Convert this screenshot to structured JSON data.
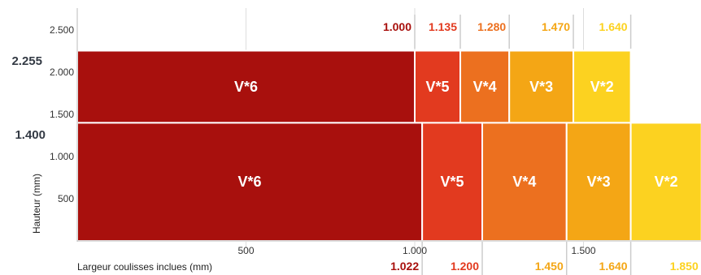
{
  "chart_data": {
    "type": "bar",
    "xlabel": "Largeur coulisses inclues (mm)",
    "ylabel": "Hauteur (mm)",
    "xlim": [
      0,
      1850
    ],
    "ylim": [
      0,
      2700
    ],
    "x_ticks": [
      {
        "value": 500,
        "label": "500"
      },
      {
        "value": 1000,
        "label": "1.000"
      },
      {
        "value": 1500,
        "label": "1.500"
      }
    ],
    "y_ticks": [
      {
        "value": 500,
        "label": "500"
      },
      {
        "value": 1000,
        "label": "1.000"
      },
      {
        "value": 1500,
        "label": "1.500"
      },
      {
        "value": 2000,
        "label": "2.000"
      },
      {
        "value": 2500,
        "label": "2.500"
      }
    ],
    "y_bounds": [
      {
        "value": 2255,
        "label": "2.255"
      },
      {
        "value": 1400,
        "label": "1.400"
      }
    ],
    "colors": {
      "V*6": "#a8100d",
      "V*5": "#e23a1f",
      "V*4": "#ec701f",
      "V*3": "#f4a615",
      "V*2": "#fcd220"
    },
    "bands": [
      {
        "name": "upper",
        "y_from": 1400,
        "y_to": 2255,
        "segments": [
          {
            "label": "V*6",
            "x_from": 0,
            "x_to": 1000
          },
          {
            "label": "V*5",
            "x_from": 1000,
            "x_to": 1135
          },
          {
            "label": "V*4",
            "x_from": 1135,
            "x_to": 1280
          },
          {
            "label": "V*3",
            "x_from": 1280,
            "x_to": 1470
          },
          {
            "label": "V*2",
            "x_from": 1470,
            "x_to": 1640
          }
        ],
        "boundary_labels": [
          {
            "value": 1000,
            "label": "1.000",
            "color": "#a8100d"
          },
          {
            "value": 1135,
            "label": "1.135",
            "color": "#e23a1f"
          },
          {
            "value": 1280,
            "label": "1.280",
            "color": "#ec701f"
          },
          {
            "value": 1470,
            "label": "1.470",
            "color": "#f4a615"
          },
          {
            "value": 1640,
            "label": "1.640",
            "color": "#fcd220"
          }
        ]
      },
      {
        "name": "lower",
        "y_from": 0,
        "y_to": 1400,
        "segments": [
          {
            "label": "V*6",
            "x_from": 0,
            "x_to": 1022
          },
          {
            "label": "V*5",
            "x_from": 1022,
            "x_to": 1200
          },
          {
            "label": "V*4",
            "x_from": 1200,
            "x_to": 1450
          },
          {
            "label": "V*3",
            "x_from": 1450,
            "x_to": 1640
          },
          {
            "label": "V*2",
            "x_from": 1640,
            "x_to": 1850
          }
        ],
        "boundary_labels": [
          {
            "value": 1022,
            "label": "1.022",
            "color": "#a8100d"
          },
          {
            "value": 1200,
            "label": "1.200",
            "color": "#e23a1f"
          },
          {
            "value": 1450,
            "label": "1.450",
            "color": "#f4a615"
          },
          {
            "value": 1640,
            "label": "1.640",
            "color": "#f4a615"
          },
          {
            "value": 1850,
            "label": "1.850",
            "color": "#fcd220"
          }
        ]
      }
    ]
  }
}
